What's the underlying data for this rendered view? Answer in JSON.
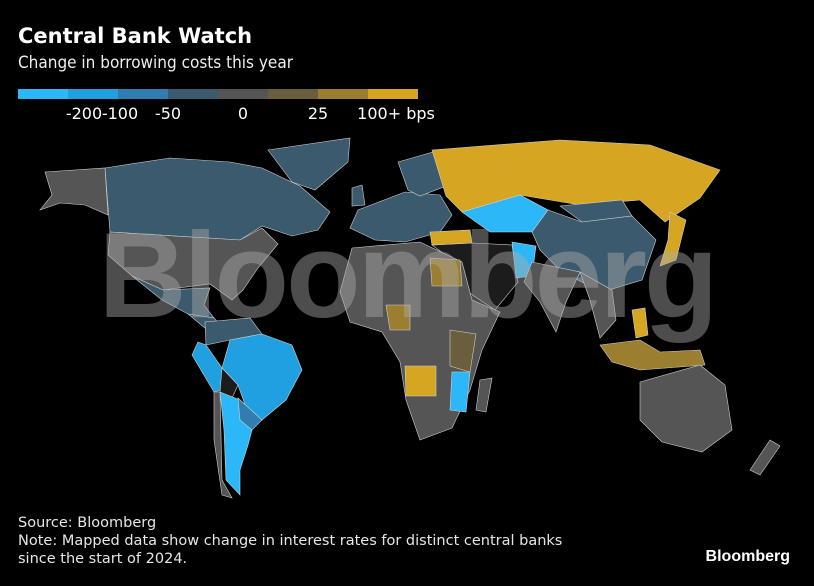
{
  "header": {
    "title": "Central Bank Watch",
    "subtitle": "Change in borrowing costs this year"
  },
  "legend": {
    "bins": [
      "#2cb8f8",
      "#20a0e0",
      "#2f7eaf",
      "#3b5a6e",
      "#555555",
      "#6b5e3c",
      "#9b7e2f",
      "#d6a521"
    ],
    "ticks": [
      "-200",
      "-100",
      "-50",
      "0",
      "25",
      "100+ bps"
    ],
    "no_data_color": "#1c1c1c",
    "border_color": "#cfcfcf"
  },
  "regions": [
    {
      "name": "Canada",
      "bin": 3
    },
    {
      "name": "Greenland",
      "bin": 3
    },
    {
      "name": "Alaska",
      "bin": 4
    },
    {
      "name": "United States",
      "bin": 4
    },
    {
      "name": "Mexico",
      "bin": 3
    },
    {
      "name": "Central America",
      "bin": 3
    },
    {
      "name": "Colombia-Venezuela",
      "bin": 3
    },
    {
      "name": "Brazil",
      "bin": 1
    },
    {
      "name": "Peru",
      "bin": 1
    },
    {
      "name": "Bolivia",
      "bin": -1
    },
    {
      "name": "Argentina",
      "bin": 0
    },
    {
      "name": "Chile",
      "bin": 4
    },
    {
      "name": "Paraguay-Uruguay",
      "bin": 2
    },
    {
      "name": "Europe",
      "bin": 3
    },
    {
      "name": "Scandinavia",
      "bin": 3
    },
    {
      "name": "UK",
      "bin": 3
    },
    {
      "name": "Russia",
      "bin": 7
    },
    {
      "name": "Kazakhstan",
      "bin": 0
    },
    {
      "name": "Mongolia",
      "bin": 3
    },
    {
      "name": "China",
      "bin": 3
    },
    {
      "name": "Middle East",
      "bin": -1
    },
    {
      "name": "Turkey",
      "bin": 7
    },
    {
      "name": "Pakistan",
      "bin": 0
    },
    {
      "name": "India",
      "bin": 4
    },
    {
      "name": "Southeast Asia",
      "bin": 4
    },
    {
      "name": "Japan",
      "bin": 7
    },
    {
      "name": "Indonesia",
      "bin": 6
    },
    {
      "name": "Philippines",
      "bin": 7
    },
    {
      "name": "Africa",
      "bin": 4
    },
    {
      "name": "Egypt",
      "bin": 6
    },
    {
      "name": "Nigeria",
      "bin": 6
    },
    {
      "name": "Angola",
      "bin": 7
    },
    {
      "name": "East Africa",
      "bin": 5
    },
    {
      "name": "Mozambique",
      "bin": 0
    },
    {
      "name": "Madagascar",
      "bin": 4
    },
    {
      "name": "Australia",
      "bin": 4
    },
    {
      "name": "New Zealand",
      "bin": 4
    }
  ],
  "watermark": "Bloomberg",
  "footer": {
    "source": "Source: Bloomberg",
    "note1": "Note: Mapped data show change in interest rates for distinct central banks",
    "note2": "since the start of 2024.",
    "brand": "Bloomberg"
  }
}
